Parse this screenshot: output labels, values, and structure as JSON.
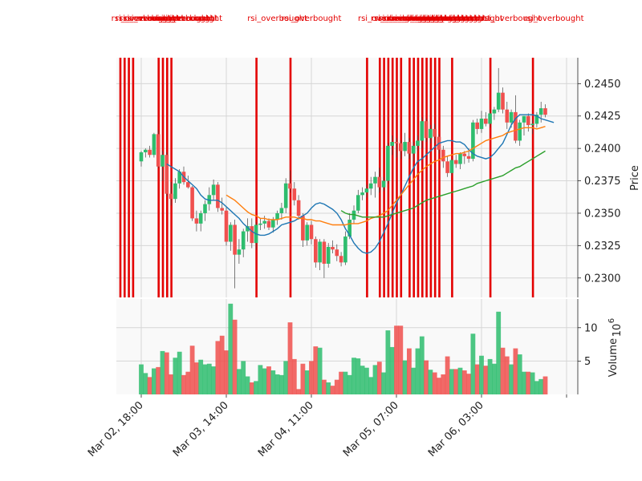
{
  "chart_data": {
    "type": "candlestick",
    "annotation_label": "rsi_overbought",
    "x_ticks": [
      "Mar 02, 18:00",
      "Mar 03, 14:00",
      "Mar 04, 11:00",
      "Mar 05, 07:00",
      "Mar 06, 03:00"
    ],
    "price_panel": {
      "ylabel": "Price",
      "ylim": [
        0.2285,
        0.247
      ],
      "yticks": [
        "0.2300",
        "0.2325",
        "0.2350",
        "0.2375",
        "0.2400",
        "0.2425",
        "0.2450"
      ]
    },
    "volume_panel": {
      "ylabel": "Volume",
      "exponent": "6",
      "ylim": [
        0,
        14.3
      ],
      "yticks": [
        "5",
        "10"
      ]
    },
    "colors": {
      "up": "#2ebd6e",
      "down": "#f0504e",
      "marker": "#e40000",
      "ma_short": "#1f77b4",
      "ma_mid": "#ff7f0e",
      "ma_long": "#2ca02c",
      "panel_bg": "#f9f9f9"
    },
    "candles": [
      [
        0.239,
        0.2398,
        0.2386,
        0.2397,
        4.5
      ],
      [
        0.2397,
        0.24,
        0.2393,
        0.2399,
        3.2
      ],
      [
        0.2399,
        0.2402,
        0.2393,
        0.2395,
        2.6
      ],
      [
        0.2395,
        0.2412,
        0.2393,
        0.2411,
        3.9
      ],
      [
        0.2411,
        0.2414,
        0.2385,
        0.2386,
        4.1
      ],
      [
        0.2386,
        0.2398,
        0.2375,
        0.2395,
        6.5
      ],
      [
        0.2395,
        0.2397,
        0.2363,
        0.2365,
        6.3
      ],
      [
        0.2365,
        0.2374,
        0.2356,
        0.2361,
        3.0
      ],
      [
        0.2361,
        0.2377,
        0.2358,
        0.2373,
        5.5
      ],
      [
        0.2373,
        0.2384,
        0.2369,
        0.2382,
        6.4
      ],
      [
        0.2382,
        0.2386,
        0.2372,
        0.2374,
        2.9
      ],
      [
        0.2374,
        0.2379,
        0.2369,
        0.237,
        3.4
      ],
      [
        0.237,
        0.2371,
        0.2344,
        0.2346,
        7.3
      ],
      [
        0.2346,
        0.2352,
        0.2336,
        0.2342,
        4.8
      ],
      [
        0.2342,
        0.2352,
        0.2336,
        0.235,
        5.2
      ],
      [
        0.235,
        0.236,
        0.2344,
        0.2357,
        4.5
      ],
      [
        0.2357,
        0.237,
        0.2352,
        0.2364,
        4.6
      ],
      [
        0.2364,
        0.2376,
        0.236,
        0.2372,
        4.2
      ],
      [
        0.2372,
        0.2374,
        0.2351,
        0.2354,
        8.0
      ],
      [
        0.2354,
        0.2362,
        0.2349,
        0.2352,
        8.8
      ],
      [
        0.2352,
        0.2355,
        0.2325,
        0.2328,
        6.6
      ],
      [
        0.2328,
        0.2343,
        0.2321,
        0.2341,
        13.6
      ],
      [
        0.2341,
        0.2345,
        0.2292,
        0.2318,
        11.2
      ],
      [
        0.2318,
        0.233,
        0.2311,
        0.2322,
        3.8
      ],
      [
        0.2322,
        0.2338,
        0.2316,
        0.2336,
        5.0
      ],
      [
        0.2336,
        0.2346,
        0.2328,
        0.234,
        2.7
      ],
      [
        0.234,
        0.2346,
        0.2323,
        0.2327,
        1.8
      ],
      [
        0.2327,
        0.2343,
        0.2322,
        0.2341,
        2.0
      ],
      [
        0.2341,
        0.2346,
        0.2337,
        0.2342,
        4.4
      ],
      [
        0.2342,
        0.2348,
        0.2338,
        0.2344,
        3.9
      ],
      [
        0.2344,
        0.2346,
        0.2337,
        0.2339,
        4.2
      ],
      [
        0.2339,
        0.2347,
        0.2335,
        0.2345,
        3.6
      ],
      [
        0.2345,
        0.2352,
        0.2341,
        0.235,
        3.0
      ],
      [
        0.235,
        0.2358,
        0.2345,
        0.2354,
        2.9
      ],
      [
        0.2354,
        0.2377,
        0.235,
        0.2373,
        5.0
      ],
      [
        0.2373,
        0.2383,
        0.2366,
        0.2369,
        10.8
      ],
      [
        0.2369,
        0.2374,
        0.2356,
        0.236,
        5.3
      ],
      [
        0.236,
        0.2364,
        0.2345,
        0.2348,
        0.8
      ],
      [
        0.2348,
        0.235,
        0.2324,
        0.2329,
        4.6
      ],
      [
        0.2329,
        0.2343,
        0.2325,
        0.2341,
        3.6
      ],
      [
        0.2341,
        0.2344,
        0.2326,
        0.233,
        5.0
      ],
      [
        0.233,
        0.2332,
        0.2308,
        0.2312,
        7.2
      ],
      [
        0.2312,
        0.233,
        0.2306,
        0.2328,
        7.0
      ],
      [
        0.2328,
        0.233,
        0.23,
        0.2311,
        2.2
      ],
      [
        0.2311,
        0.2327,
        0.2308,
        0.2324,
        1.8
      ],
      [
        0.2324,
        0.2329,
        0.2319,
        0.2322,
        1.3
      ],
      [
        0.2322,
        0.2326,
        0.2313,
        0.2317,
        2.2
      ],
      [
        0.2317,
        0.232,
        0.2309,
        0.2312,
        3.4
      ],
      [
        0.2312,
        0.2336,
        0.231,
        0.2332,
        3.4
      ],
      [
        0.2332,
        0.235,
        0.233,
        0.2345,
        2.9
      ],
      [
        0.2345,
        0.2356,
        0.2342,
        0.2352,
        5.5
      ],
      [
        0.2352,
        0.2368,
        0.235,
        0.2364,
        5.4
      ],
      [
        0.2364,
        0.237,
        0.236,
        0.2366,
        4.3
      ],
      [
        0.2366,
        0.2372,
        0.2362,
        0.2369,
        4.0
      ],
      [
        0.2369,
        0.2378,
        0.2364,
        0.2373,
        2.6
      ],
      [
        0.2373,
        0.2382,
        0.2362,
        0.2378,
        4.4
      ],
      [
        0.2378,
        0.2385,
        0.2366,
        0.237,
        4.9
      ],
      [
        0.237,
        0.2378,
        0.2367,
        0.2375,
        3.3
      ],
      [
        0.2375,
        0.2404,
        0.2373,
        0.2402,
        9.6
      ],
      [
        0.2402,
        0.241,
        0.2395,
        0.2405,
        7.1
      ],
      [
        0.2405,
        0.2408,
        0.2393,
        0.2404,
        10.3
      ],
      [
        0.2404,
        0.2406,
        0.2392,
        0.2398,
        10.3
      ],
      [
        0.2398,
        0.2412,
        0.2394,
        0.2405,
        5.1
      ],
      [
        0.2405,
        0.2408,
        0.2392,
        0.2396,
        6.9
      ],
      [
        0.2396,
        0.2405,
        0.239,
        0.2402,
        4.0
      ],
      [
        0.2402,
        0.241,
        0.2398,
        0.2406,
        6.9
      ],
      [
        0.2406,
        0.2424,
        0.24,
        0.2421,
        8.7
      ],
      [
        0.2421,
        0.2423,
        0.2405,
        0.2408,
        5.1
      ],
      [
        0.2408,
        0.2418,
        0.2404,
        0.2415,
        3.7
      ],
      [
        0.2415,
        0.2419,
        0.2404,
        0.2409,
        3.3
      ],
      [
        0.2409,
        0.2411,
        0.2396,
        0.2399,
        2.5
      ],
      [
        0.2399,
        0.2402,
        0.2385,
        0.239,
        3.0
      ],
      [
        0.239,
        0.2394,
        0.2378,
        0.2381,
        5.7
      ],
      [
        0.2381,
        0.2392,
        0.2379,
        0.2391,
        3.8
      ],
      [
        0.2391,
        0.2395,
        0.2385,
        0.2388,
        3.8
      ],
      [
        0.2388,
        0.2397,
        0.2384,
        0.2396,
        4.0
      ],
      [
        0.2396,
        0.2398,
        0.2388,
        0.2394,
        3.6
      ],
      [
        0.2394,
        0.24,
        0.2389,
        0.2392,
        3.1
      ],
      [
        0.2392,
        0.2422,
        0.239,
        0.242,
        9.1
      ],
      [
        0.242,
        0.2423,
        0.2411,
        0.2415,
        4.5
      ],
      [
        0.2415,
        0.2429,
        0.2412,
        0.2423,
        5.8
      ],
      [
        0.2423,
        0.2428,
        0.2417,
        0.2419,
        4.3
      ],
      [
        0.2419,
        0.243,
        0.2416,
        0.2427,
        5.3
      ],
      [
        0.2427,
        0.2432,
        0.2422,
        0.243,
        4.6
      ],
      [
        0.243,
        0.2462,
        0.2428,
        0.2443,
        12.4
      ],
      [
        0.2443,
        0.2447,
        0.2427,
        0.243,
        7.0
      ],
      [
        0.243,
        0.2436,
        0.2415,
        0.242,
        5.7
      ],
      [
        0.242,
        0.243,
        0.2416,
        0.2428,
        4.5
      ],
      [
        0.2428,
        0.2441,
        0.2404,
        0.2406,
        6.9
      ],
      [
        0.2406,
        0.2422,
        0.2402,
        0.242,
        6.0
      ],
      [
        0.242,
        0.2425,
        0.241,
        0.2425,
        3.4
      ],
      [
        0.2425,
        0.2427,
        0.2413,
        0.2418,
        3.4
      ],
      [
        0.2418,
        0.2422,
        0.2411,
        0.2419,
        3.3
      ],
      [
        0.2419,
        0.2428,
        0.2416,
        0.2426,
        2.0
      ],
      [
        0.2426,
        0.2436,
        0.242,
        0.2431,
        2.3
      ],
      [
        0.2431,
        0.2434,
        0.2424,
        0.2426,
        2.7
      ]
    ],
    "ma_short_start": 6,
    "ma_short": [
      0.2388,
      0.2386,
      0.2384,
      0.2382,
      0.2378,
      0.2375,
      0.2372,
      0.2369,
      0.2364,
      0.2361,
      0.236,
      0.236,
      0.236,
      0.2358,
      0.2355,
      0.2352,
      0.2349,
      0.2346,
      0.2342,
      0.2339,
      0.2336,
      0.2334,
      0.2333,
      0.2333,
      0.2334,
      0.2336,
      0.2338,
      0.2341,
      0.2342,
      0.2343,
      0.2344,
      0.2346,
      0.2348,
      0.235,
      0.2354,
      0.2357,
      0.2358,
      0.2357,
      0.2355,
      0.2353,
      0.235,
      0.2345,
      0.2338,
      0.2333,
      0.2327,
      0.2323,
      0.232,
      0.2319,
      0.232,
      0.2323,
      0.2328,
      0.2335,
      0.2342,
      0.235,
      0.2358,
      0.2364,
      0.2371,
      0.2378,
      0.2385,
      0.239,
      0.2392,
      0.2395,
      0.2398,
      0.2401,
      0.2404,
      0.2405,
      0.2406,
      0.2406,
      0.2405,
      0.2405,
      0.2403,
      0.2399,
      0.2396,
      0.2394,
      0.2393,
      0.2392,
      0.2393,
      0.2396,
      0.24,
      0.2404,
      0.2411,
      0.2418,
      0.2423,
      0.2426,
      0.2426,
      0.2426,
      0.2426,
      0.2425,
      0.2423,
      0.2422,
      0.2421,
      0.242
    ],
    "ma_mid_start": 20,
    "ma_mid": [
      0.2364,
      0.2362,
      0.236,
      0.2357,
      0.2354,
      0.2351,
      0.2349,
      0.2348,
      0.2346,
      0.2346,
      0.2345,
      0.2345,
      0.2345,
      0.2346,
      0.2347,
      0.2347,
      0.2347,
      0.2346,
      0.2346,
      0.2345,
      0.2345,
      0.2344,
      0.2344,
      0.2343,
      0.2342,
      0.2341,
      0.2341,
      0.2341,
      0.2341,
      0.2342,
      0.2342,
      0.2342,
      0.2343,
      0.2344,
      0.2346,
      0.2347,
      0.2348,
      0.235,
      0.2352,
      0.2356,
      0.236,
      0.2364,
      0.2368,
      0.2372,
      0.2376,
      0.238,
      0.2383,
      0.2386,
      0.2388,
      0.239,
      0.2391,
      0.2393,
      0.2394,
      0.2395,
      0.2396,
      0.2396,
      0.2397,
      0.2398,
      0.24,
      0.2402,
      0.2404,
      0.2406,
      0.2407,
      0.2408,
      0.2409,
      0.241,
      0.2412,
      0.2413,
      0.2414,
      0.2415,
      0.2416,
      0.2416,
      0.2416,
      0.2415,
      0.2416,
      0.2417
    ],
    "ma_long_start": 47,
    "ma_long": [
      0.2352,
      0.235,
      0.2349,
      0.2349,
      0.2348,
      0.2347,
      0.2347,
      0.2347,
      0.2347,
      0.2347,
      0.2347,
      0.2348,
      0.2349,
      0.235,
      0.2351,
      0.2352,
      0.2353,
      0.2354,
      0.2356,
      0.2358,
      0.236,
      0.2361,
      0.2362,
      0.2363,
      0.2364,
      0.2365,
      0.2366,
      0.2367,
      0.2368,
      0.2369,
      0.237,
      0.2371,
      0.2373,
      0.2374,
      0.2375,
      0.2376,
      0.2377,
      0.2378,
      0.2379,
      0.2381,
      0.2383,
      0.2385,
      0.2386,
      0.2388,
      0.239,
      0.2392,
      0.2394,
      0.2396,
      0.2398
    ],
    "signals": [
      0,
      1,
      2,
      3,
      9,
      10,
      11,
      12,
      32,
      40,
      58,
      61,
      62,
      63,
      64,
      65,
      66,
      68,
      69,
      70,
      71,
      72,
      73,
      74,
      75,
      78,
      87,
      97
    ]
  }
}
